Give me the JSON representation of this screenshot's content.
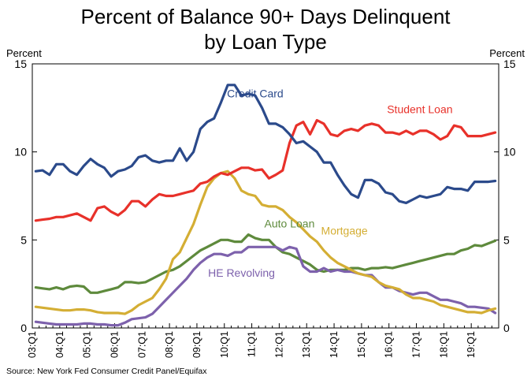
{
  "chart_data": {
    "type": "line",
    "title": [
      "Percent of Balance 90+ Days Delinquent",
      "by Loan Type"
    ],
    "left_unit_label": "Percent",
    "right_unit_label": "Percent",
    "source": "Source: New York Fed Consumer Credit Panel/Equifax",
    "ylim": [
      0,
      15
    ],
    "y_ticks": [
      0,
      5,
      10,
      15
    ],
    "x_tick_labels": [
      "03:Q1",
      "04:Q1",
      "05:Q1",
      "06:Q1",
      "07:Q1",
      "08:Q1",
      "09:Q1",
      "10:Q1",
      "11:Q1",
      "12:Q1",
      "13:Q1",
      "14:Q1",
      "15:Q1",
      "16:Q1",
      "17:Q1",
      "18:Q1",
      "19:Q1"
    ],
    "x_tick_start_index": 0,
    "quarters_per_tick": 4,
    "num_quarters": 68,
    "grid": false,
    "legend": "inline labels",
    "series": [
      {
        "name": "Credit Card",
        "color": "#2b4a8b",
        "values": [
          8.9,
          8.95,
          8.7,
          9.3,
          9.3,
          8.9,
          8.7,
          9.2,
          9.6,
          9.3,
          9.1,
          8.6,
          8.9,
          9.0,
          9.2,
          9.7,
          9.8,
          9.5,
          9.4,
          9.5,
          9.5,
          10.2,
          9.5,
          10.0,
          11.3,
          11.7,
          11.9,
          12.8,
          13.8,
          13.8,
          13.2,
          13.3,
          13.2,
          12.5,
          11.6,
          11.6,
          11.4,
          11.0,
          10.5,
          10.6,
          10.3,
          10.0,
          9.4,
          9.4,
          8.7,
          8.1,
          7.6,
          7.4,
          8.4,
          8.4,
          8.2,
          7.7,
          7.6,
          7.2,
          7.1,
          7.3,
          7.5,
          7.4,
          7.5,
          7.6,
          8.0,
          7.9,
          7.9,
          7.8,
          8.3,
          8.3,
          8.3,
          8.35
        ],
        "label_value_x_index": 32,
        "label_value_y": 13.1
      },
      {
        "name": "Student Loan",
        "color": "#e8312a",
        "values": [
          6.1,
          6.15,
          6.2,
          6.3,
          6.3,
          6.4,
          6.5,
          6.3,
          6.1,
          6.8,
          6.9,
          6.6,
          6.4,
          6.7,
          7.2,
          7.2,
          6.9,
          7.3,
          7.6,
          7.5,
          7.5,
          7.6,
          7.7,
          7.8,
          8.2,
          8.3,
          8.6,
          8.8,
          8.7,
          8.9,
          9.1,
          9.1,
          8.95,
          9.0,
          8.5,
          8.7,
          8.95,
          10.5,
          11.5,
          11.7,
          11.0,
          11.8,
          11.6,
          11.0,
          10.9,
          11.2,
          11.3,
          11.2,
          11.5,
          11.6,
          11.5,
          11.1,
          11.1,
          11.0,
          11.2,
          11.0,
          11.2,
          11.2,
          11.0,
          10.7,
          10.9,
          11.5,
          11.4,
          10.9,
          10.9,
          10.9,
          11.0,
          11.1
        ],
        "label_value_x_index": 56,
        "label_value_y": 12.2
      },
      {
        "name": "Mortgage",
        "color": "#d4ae34",
        "values": [
          1.2,
          1.15,
          1.1,
          1.05,
          1.0,
          1.0,
          1.05,
          1.05,
          1.0,
          0.9,
          0.85,
          0.85,
          0.85,
          0.8,
          1.0,
          1.3,
          1.5,
          1.7,
          2.2,
          2.8,
          3.9,
          4.3,
          5.1,
          5.9,
          7.0,
          8.0,
          8.5,
          8.8,
          8.9,
          8.5,
          7.8,
          7.6,
          7.5,
          7.0,
          6.9,
          6.9,
          6.7,
          6.3,
          6.0,
          5.6,
          5.2,
          4.9,
          4.4,
          4.0,
          3.7,
          3.5,
          3.3,
          3.1,
          3.0,
          2.9,
          2.6,
          2.4,
          2.3,
          2.2,
          1.9,
          1.7,
          1.7,
          1.6,
          1.5,
          1.3,
          1.2,
          1.1,
          1.0,
          0.9,
          0.9,
          0.85,
          1.0,
          1.1
        ],
        "label_value_x_index": 45,
        "label_value_y": 5.3
      },
      {
        "name": "Auto Loan",
        "color": "#5e8a3c",
        "values": [
          2.3,
          2.25,
          2.2,
          2.3,
          2.2,
          2.35,
          2.4,
          2.35,
          2.0,
          2.0,
          2.1,
          2.2,
          2.3,
          2.6,
          2.6,
          2.55,
          2.6,
          2.8,
          3.0,
          3.2,
          3.3,
          3.5,
          3.8,
          4.1,
          4.4,
          4.6,
          4.8,
          5.0,
          5.0,
          4.9,
          4.9,
          5.3,
          5.1,
          5.0,
          5.0,
          4.6,
          4.3,
          4.2,
          4.0,
          3.8,
          3.6,
          3.3,
          3.2,
          3.3,
          3.3,
          3.3,
          3.4,
          3.4,
          3.3,
          3.4,
          3.4,
          3.45,
          3.4,
          3.5,
          3.6,
          3.7,
          3.8,
          3.9,
          4.0,
          4.1,
          4.2,
          4.2,
          4.4,
          4.5,
          4.7,
          4.65,
          4.8,
          4.95
        ],
        "label_value_x_index": 37,
        "label_value_y": 5.7
      },
      {
        "name": "HE Revolving",
        "color": "#7d61ac",
        "values": [
          0.35,
          0.3,
          0.25,
          0.2,
          0.2,
          0.2,
          0.2,
          0.25,
          0.25,
          0.2,
          0.2,
          0.15,
          0.15,
          0.3,
          0.5,
          0.55,
          0.6,
          0.8,
          1.2,
          1.6,
          2.0,
          2.4,
          2.8,
          3.3,
          3.7,
          4.0,
          4.2,
          4.2,
          4.1,
          4.3,
          4.3,
          4.6,
          4.6,
          4.6,
          4.6,
          4.6,
          4.4,
          4.6,
          4.5,
          3.5,
          3.2,
          3.2,
          3.4,
          3.2,
          3.3,
          3.2,
          3.2,
          3.1,
          3.0,
          3.0,
          2.6,
          2.3,
          2.3,
          2.1,
          2.0,
          1.9,
          2.0,
          2.0,
          1.8,
          1.6,
          1.6,
          1.5,
          1.4,
          1.2,
          1.2,
          1.15,
          1.1,
          0.85
        ],
        "label_value_x_index": 30,
        "label_value_y": 2.9
      }
    ]
  }
}
